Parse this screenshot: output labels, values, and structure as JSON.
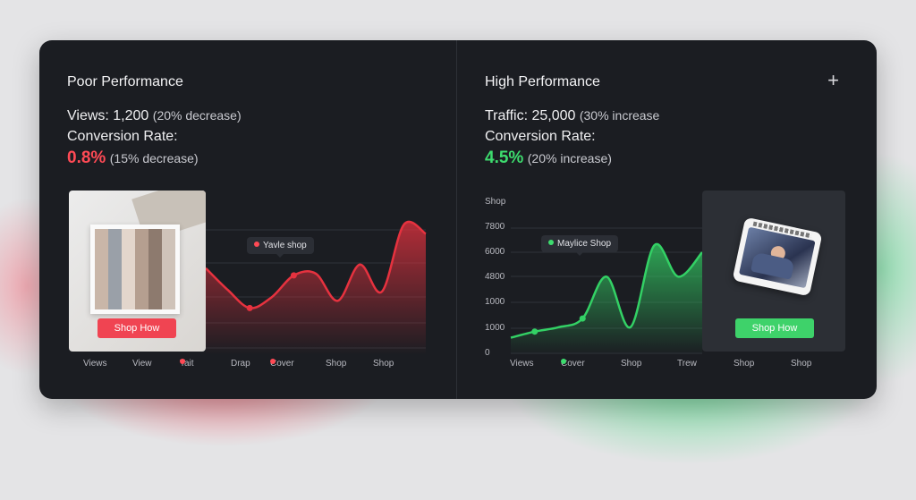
{
  "left": {
    "title": "Poor Performance",
    "views_label": "Views: 1,200",
    "views_change": "(20% decrease)",
    "conversion_label": "Conversion Rate:",
    "conversion_value": "0.8%",
    "conversion_change": "(15% decrease)",
    "tooltip": "Yavle shop",
    "shop_button": "Shop How",
    "x_labels": [
      "Views",
      "View",
      "Tait",
      "Drap",
      "Cover",
      "Shop",
      "Shop"
    ],
    "x_label_dots": [
      false,
      false,
      true,
      false,
      true,
      false,
      false
    ]
  },
  "right": {
    "title": "High Performance",
    "traffic_label": "Traffic: 25,000",
    "traffic_change": "(30% increase",
    "conversion_label": "Conversion Rate:",
    "conversion_value": "4.5%",
    "conversion_change": "(20% increase)",
    "tooltip": "Maylice Shop",
    "shop_button": "Shop How",
    "y_title": "Shop",
    "y_labels": [
      "7800",
      "6000",
      "4800",
      "1000",
      "1000",
      "0"
    ],
    "x_labels": [
      "Views",
      "Cover",
      "Shop",
      "Trew",
      "Shop",
      "Shop"
    ],
    "x_label_dots": [
      false,
      true,
      false,
      false,
      false,
      false
    ]
  },
  "colors": {
    "card": "#1b1d22",
    "red": "#ff4a55",
    "green": "#3ddc6e",
    "red_button": "#f04452",
    "green_button": "#3ed26a"
  },
  "icons": {
    "add": "plus-icon"
  },
  "chart_data": [
    {
      "type": "area",
      "series": [
        {
          "values": [
            4.8,
            3.6,
            2.6,
            3.2,
            4.4,
            4.5,
            3.0,
            5.0,
            3.5,
            7.2,
            6.7
          ]
        }
      ],
      "x_labels": [
        "Views",
        "View",
        "Tait",
        "Drap",
        "Cover",
        "Shop",
        "Shop"
      ],
      "ylim": [
        0,
        8
      ],
      "grid": true,
      "annotations": [
        "Yavle shop"
      ]
    },
    {
      "type": "area",
      "series": [
        {
          "values": [
            1000,
            1350,
            1600,
            2100,
            4500,
            1600,
            6300,
            4500,
            5900
          ]
        }
      ],
      "y_ticks": [
        "7800",
        "6000",
        "4800",
        "1000",
        "1000",
        "0"
      ],
      "x_labels": [
        "Views",
        "Cover",
        "Shop",
        "Trew",
        "Shop",
        "Shop"
      ],
      "grid": true,
      "annotations": [
        "Maylice Shop"
      ]
    }
  ]
}
